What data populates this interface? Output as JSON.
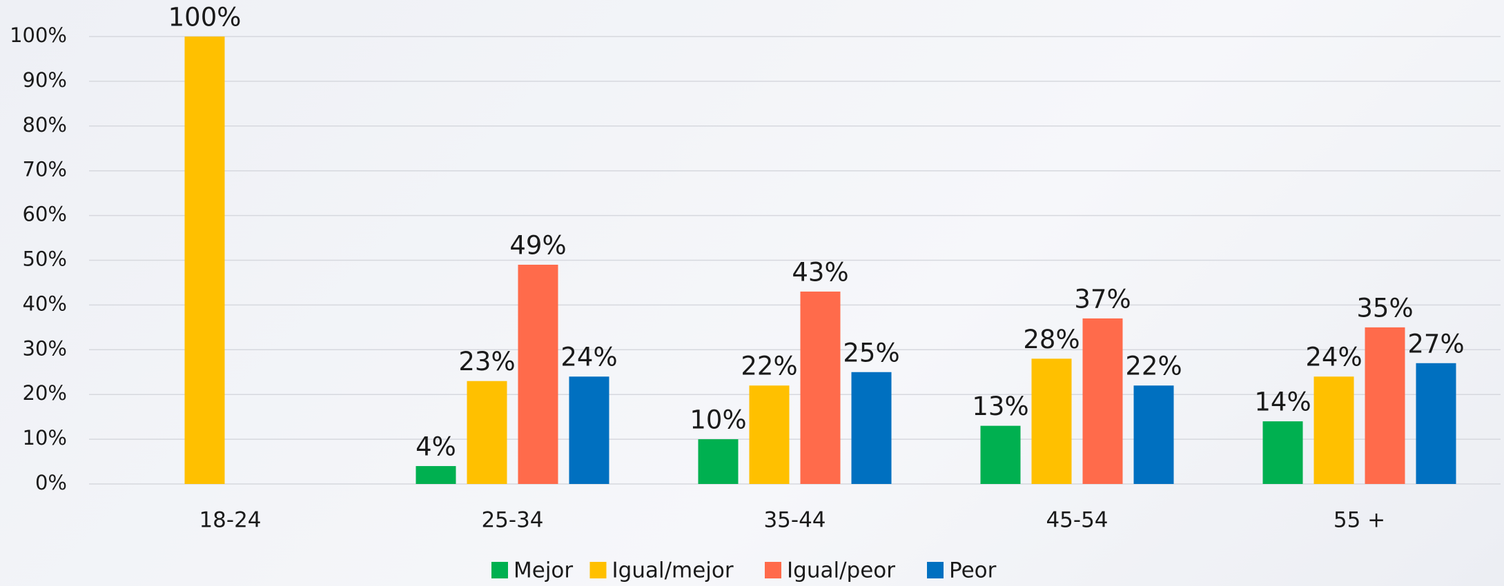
{
  "chart_data": {
    "type": "bar",
    "categories": [
      "18-24",
      "25-34",
      "35-44",
      "45-54",
      "55 +"
    ],
    "series": [
      {
        "name": "Mejor",
        "color": "#00b050",
        "values": [
          null,
          4,
          10,
          13,
          14
        ],
        "value_labels": [
          null,
          "4%",
          "10%",
          "13%",
          "14%"
        ]
      },
      {
        "name": "Igual/mejor",
        "color": "#ffc000",
        "values": [
          100,
          23,
          22,
          28,
          24
        ],
        "value_labels": [
          "100%",
          "23%",
          "22%",
          "28%",
          "24%"
        ]
      },
      {
        "name": "Igual/peor",
        "color": "#ff6b4b",
        "values": [
          null,
          49,
          43,
          37,
          35
        ],
        "value_labels": [
          null,
          "49%",
          "43%",
          "37%",
          "35%"
        ]
      },
      {
        "name": "Peor",
        "color": "#0070c0",
        "values": [
          null,
          24,
          25,
          22,
          27
        ],
        "value_labels": [
          null,
          "24%",
          "25%",
          "22%",
          "27%"
        ]
      }
    ],
    "ylim": [
      0,
      100
    ],
    "yticks": [
      {
        "value": 0,
        "label": "0%"
      },
      {
        "value": 10,
        "label": "10%"
      },
      {
        "value": 20,
        "label": "20%"
      },
      {
        "value": 30,
        "label": "30%"
      },
      {
        "value": 40,
        "label": "40%"
      },
      {
        "value": 50,
        "label": "50%"
      },
      {
        "value": 60,
        "label": "60%"
      },
      {
        "value": 70,
        "label": "70%"
      },
      {
        "value": 80,
        "label": "80%"
      },
      {
        "value": 90,
        "label": "90%"
      },
      {
        "value": 100,
        "label": "100%"
      }
    ],
    "grid": true,
    "legend": "bottom"
  }
}
